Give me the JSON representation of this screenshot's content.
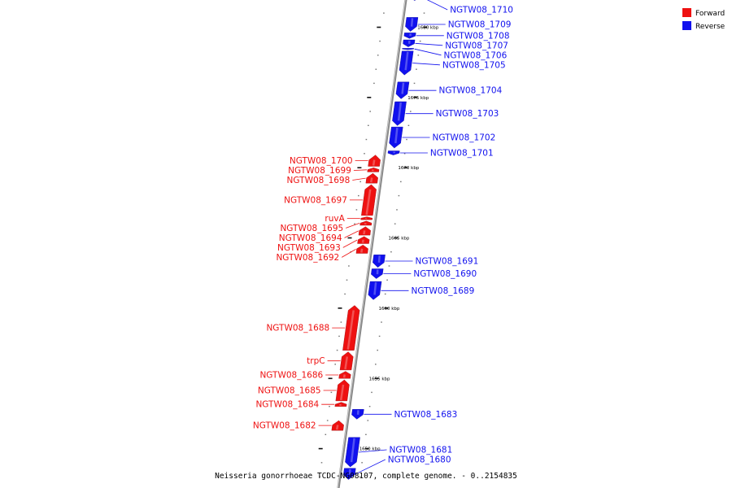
{
  "caption": "Neisseria gonorrhoeae TCDC-NG08107, complete genome. - 0..2154835",
  "legend": [
    {
      "label": "Forward",
      "color": "#ee1111"
    },
    {
      "label": "Reverse",
      "color": "#1111ee"
    }
  ],
  "colors": {
    "forward": "#ee1111",
    "reverse": "#1111ee",
    "backbone": "#888888"
  },
  "scale": {
    "unit": "kbp",
    "top_kbp": 1682.4,
    "bottom_kbp": 1647.2
  },
  "tick_labels": [
    {
      "kbp": 1680,
      "text": "1680 kbp"
    },
    {
      "kbp": 1675,
      "text": "1675 kbp"
    },
    {
      "kbp": 1670,
      "text": "1670 kbp"
    },
    {
      "kbp": 1665,
      "text": "1665 kbp"
    },
    {
      "kbp": 1660,
      "text": "1660 kbp"
    },
    {
      "kbp": 1655,
      "text": "1655 kbp"
    },
    {
      "kbp": 1650,
      "text": "1650 kbp"
    }
  ],
  "genes": [
    {
      "name": "NGTW08_1710",
      "strand": "reverse",
      "start_kbp": 1681.9,
      "end_kbp": 1682.4
    },
    {
      "name": "NGTW08_1709",
      "strand": "reverse",
      "start_kbp": 1679.7,
      "end_kbp": 1680.7
    },
    {
      "name": "NGTW08_1708",
      "strand": "reverse",
      "start_kbp": 1679.2,
      "end_kbp": 1679.6
    },
    {
      "name": "NGTW08_1707",
      "strand": "reverse",
      "start_kbp": 1678.6,
      "end_kbp": 1679.1
    },
    {
      "name": "NGTW08_1706",
      "strand": "reverse",
      "start_kbp": 1678.4,
      "end_kbp": 1678.5
    },
    {
      "name": "NGTW08_1705",
      "strand": "reverse",
      "start_kbp": 1676.6,
      "end_kbp": 1678.3
    },
    {
      "name": "NGTW08_1704",
      "strand": "reverse",
      "start_kbp": 1674.9,
      "end_kbp": 1676.1
    },
    {
      "name": "NGTW08_1703",
      "strand": "reverse",
      "start_kbp": 1673.0,
      "end_kbp": 1674.7
    },
    {
      "name": "NGTW08_1702",
      "strand": "reverse",
      "start_kbp": 1671.4,
      "end_kbp": 1672.9
    },
    {
      "name": "NGTW08_1701",
      "strand": "reverse",
      "start_kbp": 1670.9,
      "end_kbp": 1671.2
    },
    {
      "name": "NGTW08_1700",
      "strand": "forward",
      "start_kbp": 1670.1,
      "end_kbp": 1670.9
    },
    {
      "name": "NGTW08_1699",
      "strand": "forward",
      "start_kbp": 1669.7,
      "end_kbp": 1670.0
    },
    {
      "name": "NGTW08_1698",
      "strand": "forward",
      "start_kbp": 1668.9,
      "end_kbp": 1669.6
    },
    {
      "name": "NGTW08_1697",
      "strand": "forward",
      "start_kbp": 1666.6,
      "end_kbp": 1668.8
    },
    {
      "name": "ruvA",
      "strand": "forward",
      "start_kbp": 1666.3,
      "end_kbp": 1666.5
    },
    {
      "name": "NGTW08_1695",
      "strand": "forward",
      "start_kbp": 1665.9,
      "end_kbp": 1666.2
    },
    {
      "name": "NGTW08_1694",
      "strand": "forward",
      "start_kbp": 1665.2,
      "end_kbp": 1665.8
    },
    {
      "name": "NGTW08_1693",
      "strand": "forward",
      "start_kbp": 1664.6,
      "end_kbp": 1665.1
    },
    {
      "name": "NGTW08_1692",
      "strand": "forward",
      "start_kbp": 1663.9,
      "end_kbp": 1664.5
    },
    {
      "name": "NGTW08_1691",
      "strand": "reverse",
      "start_kbp": 1662.9,
      "end_kbp": 1663.8
    },
    {
      "name": "NGTW08_1690",
      "strand": "reverse",
      "start_kbp": 1662.1,
      "end_kbp": 1662.8
    },
    {
      "name": "NGTW08_1689",
      "strand": "reverse",
      "start_kbp": 1660.6,
      "end_kbp": 1661.9
    },
    {
      "name": "NGTW08_1688",
      "strand": "forward",
      "start_kbp": 1657.0,
      "end_kbp": 1660.2
    },
    {
      "name": "trpC",
      "strand": "forward",
      "start_kbp": 1655.6,
      "end_kbp": 1656.9
    },
    {
      "name": "NGTW08_1686",
      "strand": "forward",
      "start_kbp": 1655.0,
      "end_kbp": 1655.5
    },
    {
      "name": "NGTW08_1685",
      "strand": "forward",
      "start_kbp": 1653.4,
      "end_kbp": 1654.9
    },
    {
      "name": "NGTW08_1684",
      "strand": "forward",
      "start_kbp": 1653.0,
      "end_kbp": 1653.3
    },
    {
      "name": "NGTW08_1683",
      "strand": "reverse",
      "start_kbp": 1652.1,
      "end_kbp": 1652.8
    },
    {
      "name": "NGTW08_1682",
      "strand": "forward",
      "start_kbp": 1651.3,
      "end_kbp": 1652.0
    },
    {
      "name": "NGTW08_1681",
      "strand": "reverse",
      "start_kbp": 1648.7,
      "end_kbp": 1650.8
    },
    {
      "name": "NGTW08_1680",
      "strand": "reverse",
      "start_kbp": 1647.8,
      "end_kbp": 1648.6
    }
  ]
}
